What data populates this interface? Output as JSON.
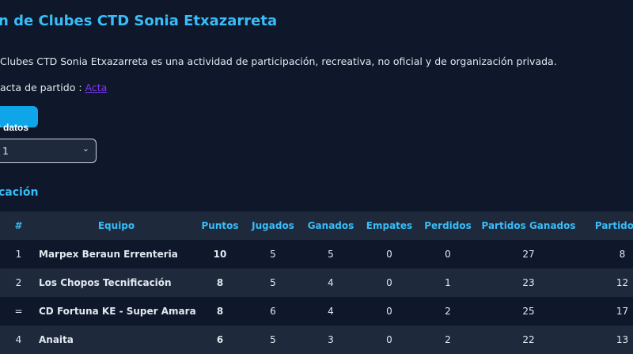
{
  "header": {
    "title": "n de Clubes CTD Sonia Etxazarreta"
  },
  "description": "Clubes CTD Sonia Etxazarreta es una actividad de participación, recreativa, no oficial y de organización privada.",
  "acta": {
    "label": "acta de partido : ",
    "link": "Acta"
  },
  "button": {
    "label": "ar datos"
  },
  "select": {
    "value": "1"
  },
  "section": {
    "title": "cación"
  },
  "table": {
    "headers": [
      "#",
      "Equipo",
      "Puntos",
      "Jugados",
      "Ganados",
      "Empates",
      "Perdidos",
      "Partidos Ganados",
      "Partidos P"
    ],
    "rows": [
      [
        "1",
        "Marpex Beraun Errenteria",
        "10",
        "5",
        "5",
        "0",
        "0",
        "27",
        "8"
      ],
      [
        "2",
        "Los Chopos Tecnificación",
        "8",
        "5",
        "4",
        "0",
        "1",
        "23",
        "12"
      ],
      [
        "=",
        "CD Fortuna KE - Super Amara",
        "8",
        "6",
        "4",
        "0",
        "2",
        "25",
        "17"
      ],
      [
        "4",
        "Anaita",
        "6",
        "5",
        "3",
        "0",
        "2",
        "22",
        "13"
      ]
    ]
  },
  "colors": {
    "accent": "#38bdf8",
    "button": "#0ea5e9",
    "background": "#0f172a",
    "row_alt": "#1e293b",
    "link": "#7c3aed"
  }
}
